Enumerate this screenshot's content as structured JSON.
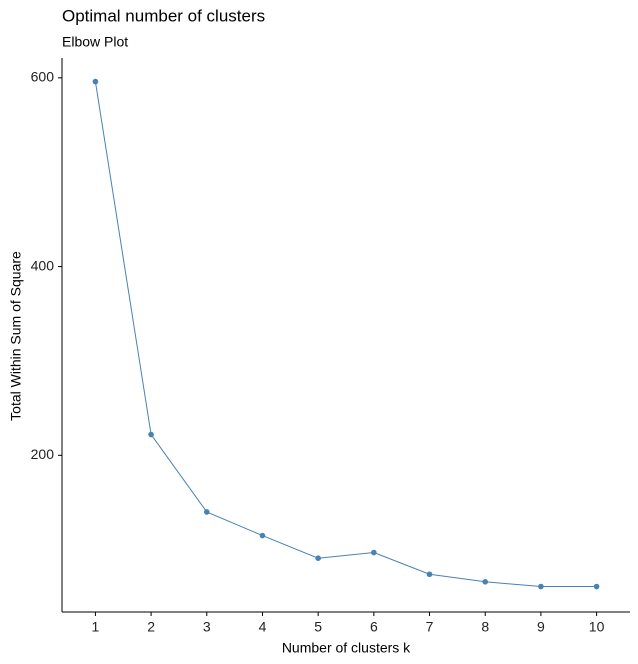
{
  "chart_data": {
    "type": "line",
    "title": "Optimal number of clusters",
    "subtitle": "Elbow Plot",
    "x_label": "Number of clusters k",
    "y_label": "Total Within Sum of Square",
    "x": [
      1,
      2,
      3,
      4,
      5,
      6,
      7,
      8,
      9,
      10
    ],
    "series": [
      {
        "color": "#4682b4",
        "values": [
          596,
          222,
          140,
          115,
          91,
          97,
          74,
          66,
          61,
          61
        ]
      }
    ],
    "xlim": [
      0.4,
      10.6
    ],
    "xticks": [
      1,
      2,
      3,
      4,
      5,
      6,
      7,
      8,
      9,
      10
    ],
    "ylim": [
      34,
      621
    ],
    "yticks": [
      200,
      400,
      600
    ],
    "grid": false
  }
}
